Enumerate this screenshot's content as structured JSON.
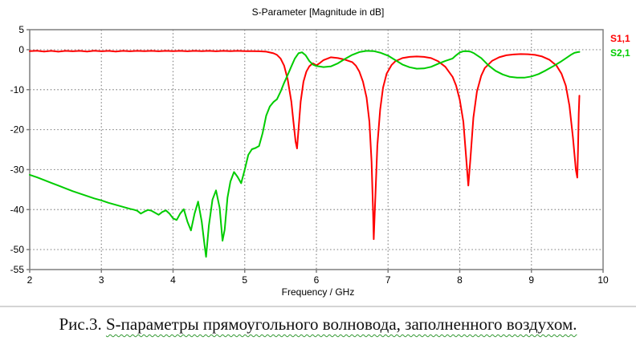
{
  "chart_data": {
    "type": "line",
    "title": "S-Parameter [Magnitude in dB]",
    "xlabel": "Frequency / GHz",
    "ylabel": "",
    "xlim": [
      2,
      10
    ],
    "ylim": [
      -55,
      5
    ],
    "x_ticks": [
      2,
      3,
      4,
      5,
      6,
      7,
      8,
      9,
      10
    ],
    "y_ticks": [
      5,
      0,
      -10,
      -20,
      -30,
      -40,
      -50,
      -55
    ],
    "grid": true,
    "legend_position": "outside-right",
    "frame_color": "#7f7f7f",
    "grid_color": "#878787",
    "series": [
      {
        "name": "S1,1",
        "color": "#ff0000",
        "points": [
          [
            2.0,
            -0.35
          ],
          [
            2.1,
            -0.25
          ],
          [
            2.2,
            -0.45
          ],
          [
            2.3,
            -0.3
          ],
          [
            2.4,
            -0.5
          ],
          [
            2.5,
            -0.3
          ],
          [
            2.6,
            -0.4
          ],
          [
            2.7,
            -0.3
          ],
          [
            2.8,
            -0.45
          ],
          [
            2.9,
            -0.25
          ],
          [
            3.0,
            -0.4
          ],
          [
            3.1,
            -0.3
          ],
          [
            3.2,
            -0.45
          ],
          [
            3.3,
            -0.3
          ],
          [
            3.4,
            -0.4
          ],
          [
            3.5,
            -0.3
          ],
          [
            3.6,
            -0.35
          ],
          [
            3.7,
            -0.3
          ],
          [
            3.8,
            -0.4
          ],
          [
            3.9,
            -0.3
          ],
          [
            4.0,
            -0.35
          ],
          [
            4.1,
            -0.3
          ],
          [
            4.2,
            -0.4
          ],
          [
            4.3,
            -0.3
          ],
          [
            4.4,
            -0.35
          ],
          [
            4.5,
            -0.3
          ],
          [
            4.6,
            -0.4
          ],
          [
            4.7,
            -0.3
          ],
          [
            4.8,
            -0.35
          ],
          [
            4.9,
            -0.3
          ],
          [
            5.0,
            -0.35
          ],
          [
            5.1,
            -0.35
          ],
          [
            5.2,
            -0.4
          ],
          [
            5.3,
            -0.5
          ],
          [
            5.4,
            -0.9
          ],
          [
            5.45,
            -1.3
          ],
          [
            5.5,
            -2.2
          ],
          [
            5.55,
            -4.0
          ],
          [
            5.6,
            -7.5
          ],
          [
            5.65,
            -13
          ],
          [
            5.68,
            -18
          ],
          [
            5.71,
            -23
          ],
          [
            5.73,
            -24.7
          ],
          [
            5.75,
            -20
          ],
          [
            5.78,
            -13
          ],
          [
            5.82,
            -8
          ],
          [
            5.86,
            -5.5
          ],
          [
            5.9,
            -4.2
          ],
          [
            5.95,
            -3.4
          ],
          [
            6.0,
            -3.9
          ],
          [
            6.05,
            -3.3
          ],
          [
            6.1,
            -2.6
          ],
          [
            6.2,
            -1.9
          ],
          [
            6.3,
            -2.1
          ],
          [
            6.4,
            -2.5
          ],
          [
            6.5,
            -3.1
          ],
          [
            6.55,
            -4
          ],
          [
            6.6,
            -5.5
          ],
          [
            6.65,
            -8
          ],
          [
            6.7,
            -12
          ],
          [
            6.74,
            -18
          ],
          [
            6.77,
            -28
          ],
          [
            6.79,
            -40
          ],
          [
            6.8,
            -47.4
          ],
          [
            6.82,
            -38
          ],
          [
            6.85,
            -24
          ],
          [
            6.89,
            -15
          ],
          [
            6.93,
            -9.5
          ],
          [
            6.98,
            -6
          ],
          [
            7.05,
            -3.8
          ],
          [
            7.1,
            -2.9
          ],
          [
            7.2,
            -2.1
          ],
          [
            7.3,
            -1.8
          ],
          [
            7.4,
            -1.7
          ],
          [
            7.5,
            -1.8
          ],
          [
            7.6,
            -2.1
          ],
          [
            7.7,
            -2.9
          ],
          [
            7.8,
            -4.3
          ],
          [
            7.9,
            -6.8
          ],
          [
            7.95,
            -9
          ],
          [
            8.0,
            -12.5
          ],
          [
            8.05,
            -18
          ],
          [
            8.09,
            -27
          ],
          [
            8.12,
            -34
          ],
          [
            8.15,
            -27
          ],
          [
            8.19,
            -17
          ],
          [
            8.24,
            -10.5
          ],
          [
            8.3,
            -6.5
          ],
          [
            8.35,
            -4.6
          ],
          [
            8.45,
            -2.8
          ],
          [
            8.55,
            -1.9
          ],
          [
            8.65,
            -1.4
          ],
          [
            8.75,
            -1.2
          ],
          [
            8.85,
            -1.1
          ],
          [
            8.95,
            -1.15
          ],
          [
            9.05,
            -1.3
          ],
          [
            9.15,
            -1.7
          ],
          [
            9.25,
            -2.5
          ],
          [
            9.35,
            -4
          ],
          [
            9.42,
            -6
          ],
          [
            9.48,
            -9
          ],
          [
            9.53,
            -14
          ],
          [
            9.58,
            -22
          ],
          [
            9.62,
            -30
          ],
          [
            9.64,
            -32
          ],
          [
            9.65,
            -25
          ],
          [
            9.66,
            -16
          ],
          [
            9.67,
            -11.5
          ]
        ]
      },
      {
        "name": "S2,1",
        "color": "#00cc00",
        "points": [
          [
            2.0,
            -31.3
          ],
          [
            2.1,
            -31.9
          ],
          [
            2.2,
            -32.6
          ],
          [
            2.3,
            -33.3
          ],
          [
            2.4,
            -34.0
          ],
          [
            2.5,
            -34.7
          ],
          [
            2.6,
            -35.4
          ],
          [
            2.7,
            -36.0
          ],
          [
            2.8,
            -36.6
          ],
          [
            2.9,
            -37.2
          ],
          [
            3.0,
            -37.7
          ],
          [
            3.1,
            -38.3
          ],
          [
            3.2,
            -38.8
          ],
          [
            3.3,
            -39.3
          ],
          [
            3.4,
            -39.8
          ],
          [
            3.45,
            -40.0
          ],
          [
            3.5,
            -40.3
          ],
          [
            3.55,
            -41.0
          ],
          [
            3.6,
            -40.5
          ],
          [
            3.65,
            -40.1
          ],
          [
            3.7,
            -40.3
          ],
          [
            3.75,
            -40.8
          ],
          [
            3.8,
            -41.3
          ],
          [
            3.85,
            -40.6
          ],
          [
            3.9,
            -40.2
          ],
          [
            3.95,
            -41.0
          ],
          [
            4.0,
            -42.2
          ],
          [
            4.05,
            -42.6
          ],
          [
            4.1,
            -41.0
          ],
          [
            4.15,
            -39.9
          ],
          [
            4.2,
            -43.0
          ],
          [
            4.25,
            -45.2
          ],
          [
            4.3,
            -41.0
          ],
          [
            4.35,
            -38.0
          ],
          [
            4.4,
            -43.0
          ],
          [
            4.44,
            -49.0
          ],
          [
            4.46,
            -51.8
          ],
          [
            4.5,
            -44.0
          ],
          [
            4.55,
            -37.5
          ],
          [
            4.6,
            -35.2
          ],
          [
            4.65,
            -39.5
          ],
          [
            4.69,
            -47.8
          ],
          [
            4.72,
            -45.0
          ],
          [
            4.76,
            -37.0
          ],
          [
            4.8,
            -33.0
          ],
          [
            4.85,
            -30.6
          ],
          [
            4.9,
            -31.8
          ],
          [
            4.95,
            -33.4
          ],
          [
            5.0,
            -30.0
          ],
          [
            5.05,
            -26.3
          ],
          [
            5.1,
            -24.9
          ],
          [
            5.15,
            -24.6
          ],
          [
            5.2,
            -24.1
          ],
          [
            5.25,
            -20.8
          ],
          [
            5.3,
            -16.5
          ],
          [
            5.35,
            -14.2
          ],
          [
            5.4,
            -13.1
          ],
          [
            5.45,
            -12.4
          ],
          [
            5.5,
            -10.5
          ],
          [
            5.55,
            -8.3
          ],
          [
            5.6,
            -6.3
          ],
          [
            5.65,
            -4.2
          ],
          [
            5.7,
            -2.2
          ],
          [
            5.75,
            -0.9
          ],
          [
            5.8,
            -0.65
          ],
          [
            5.85,
            -1.4
          ],
          [
            5.9,
            -2.8
          ],
          [
            5.95,
            -3.7
          ],
          [
            6.0,
            -4.1
          ],
          [
            6.1,
            -4.35
          ],
          [
            6.2,
            -4.2
          ],
          [
            6.3,
            -3.4
          ],
          [
            6.4,
            -2.3
          ],
          [
            6.5,
            -1.3
          ],
          [
            6.6,
            -0.6
          ],
          [
            6.7,
            -0.3
          ],
          [
            6.8,
            -0.35
          ],
          [
            6.9,
            -0.8
          ],
          [
            7.0,
            -1.5
          ],
          [
            7.1,
            -2.6
          ],
          [
            7.2,
            -3.7
          ],
          [
            7.3,
            -4.4
          ],
          [
            7.4,
            -4.75
          ],
          [
            7.5,
            -4.7
          ],
          [
            7.6,
            -4.3
          ],
          [
            7.7,
            -3.5
          ],
          [
            7.8,
            -2.8
          ],
          [
            7.9,
            -2.2
          ],
          [
            7.95,
            -1.4
          ],
          [
            8.0,
            -0.7
          ],
          [
            8.05,
            -0.4
          ],
          [
            8.1,
            -0.35
          ],
          [
            8.15,
            -0.5
          ],
          [
            8.2,
            -0.9
          ],
          [
            8.3,
            -2.1
          ],
          [
            8.4,
            -3.9
          ],
          [
            8.5,
            -5.3
          ],
          [
            8.6,
            -6.2
          ],
          [
            8.7,
            -6.8
          ],
          [
            8.8,
            -7.0
          ],
          [
            8.9,
            -7.0
          ],
          [
            9.0,
            -6.7
          ],
          [
            9.1,
            -6.1
          ],
          [
            9.2,
            -5.2
          ],
          [
            9.3,
            -4.2
          ],
          [
            9.4,
            -3.1
          ],
          [
            9.5,
            -1.9
          ],
          [
            9.55,
            -1.3
          ],
          [
            9.6,
            -0.8
          ],
          [
            9.65,
            -0.6
          ],
          [
            9.67,
            -0.55
          ]
        ]
      }
    ]
  },
  "caption": {
    "prefix": "Рис.3. ",
    "underlined_text": "S-параметры прямоугольного волновода, заполненного воздухом.",
    "underline_color": "#339933"
  }
}
